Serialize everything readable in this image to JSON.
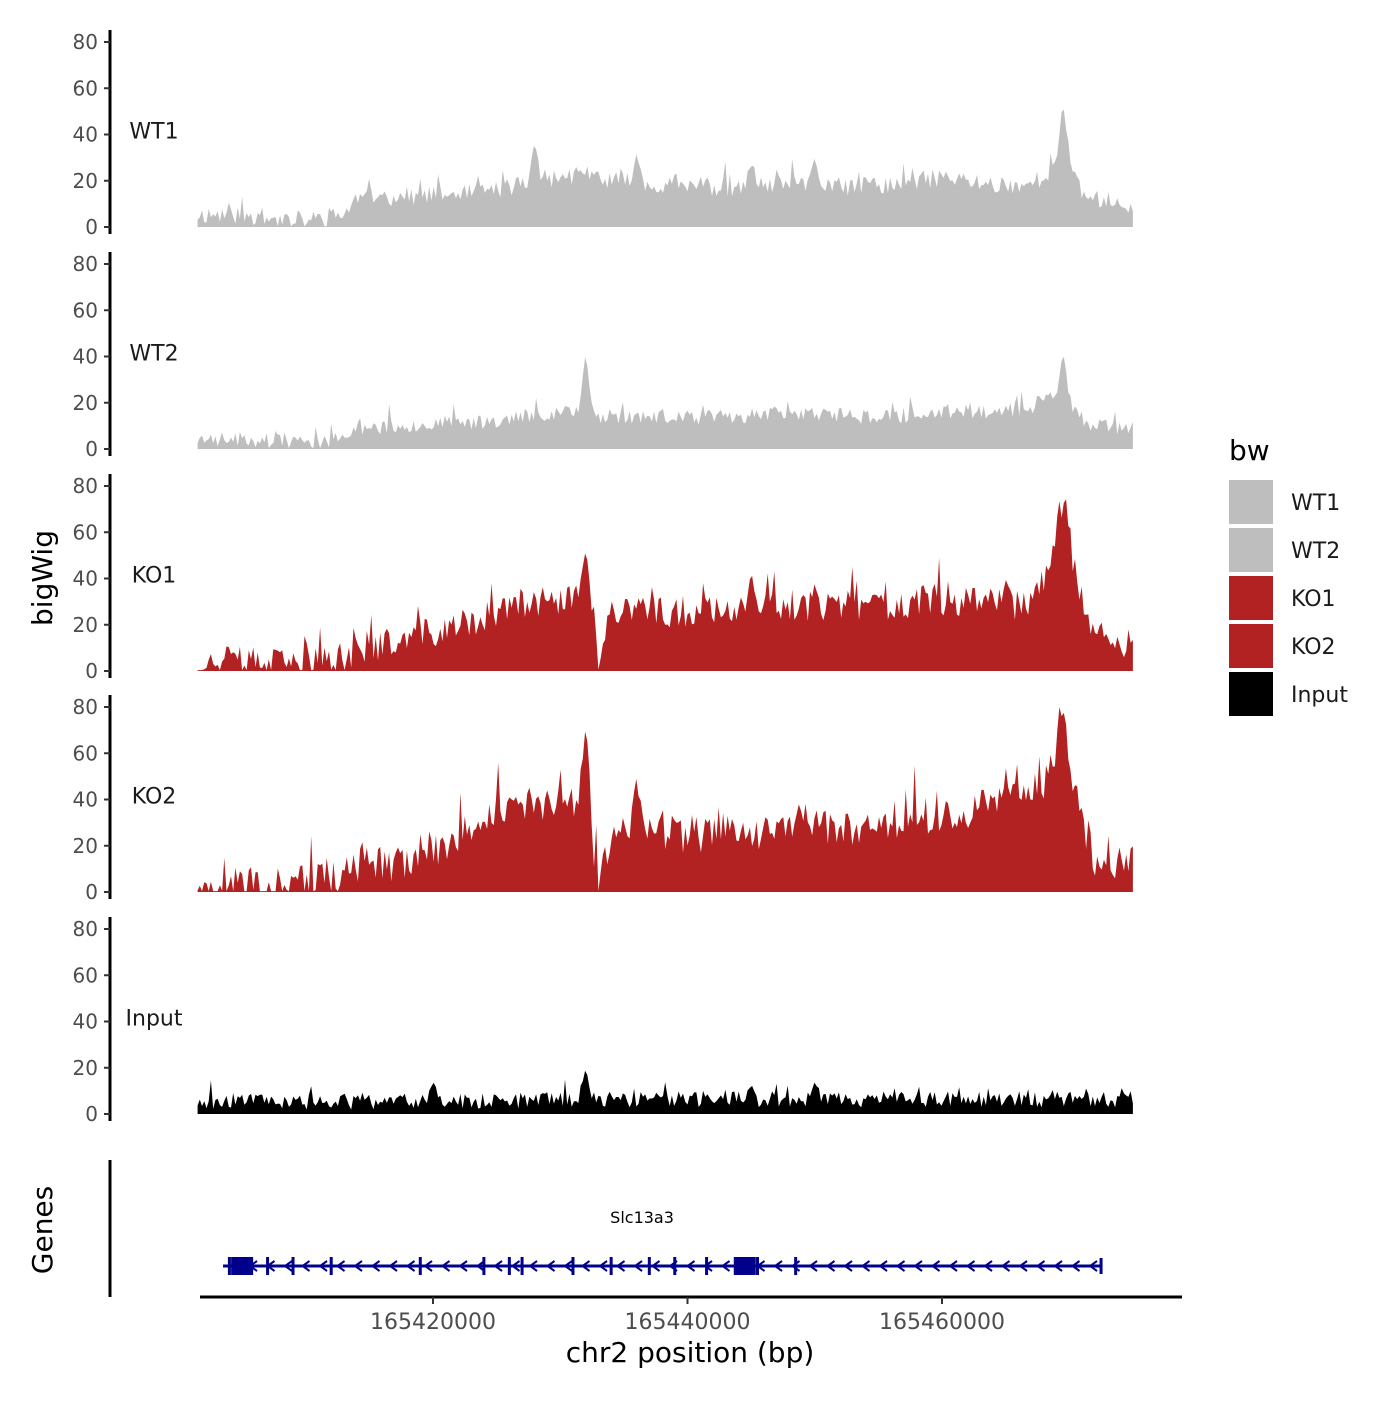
{
  "chart_data": {
    "type": "area",
    "title": "",
    "xlabel": "chr2 position (bp)",
    "ylabel": "bigWig",
    "genes_label": "Genes",
    "x_range": [
      165401500,
      165475000
    ],
    "x_ticks": [
      165420000,
      165440000,
      165460000
    ],
    "x_tick_labels": [
      "165420000",
      "165440000",
      "165460000"
    ],
    "ylim": [
      0,
      80
    ],
    "y_ticks": [
      0,
      20,
      40,
      60,
      80
    ],
    "y_tick_labels": [
      "0",
      "20",
      "40",
      "60",
      "80"
    ],
    "legend": {
      "title": "bw",
      "position": "right",
      "entries": [
        {
          "label": "WT1",
          "color": "#bebebe"
        },
        {
          "label": "WT2",
          "color": "#bebebe"
        },
        {
          "label": "KO1",
          "color": "#b22222"
        },
        {
          "label": "KO2",
          "color": "#b22222"
        },
        {
          "label": "Input",
          "color": "#000000"
        }
      ]
    },
    "series": [
      {
        "name": "WT1",
        "color": "#bebebe",
        "seed": 11,
        "noise": 6,
        "profile": [
          [
            165405000,
            5
          ],
          [
            165409000,
            2
          ],
          [
            165411000,
            3
          ],
          [
            165413000,
            5
          ],
          [
            165414000,
            12
          ],
          [
            165418000,
            13
          ],
          [
            165423000,
            14
          ],
          [
            165426000,
            17
          ],
          [
            165428000,
            20
          ],
          [
            165432000,
            22
          ],
          [
            165436000,
            18
          ],
          [
            165440000,
            18
          ],
          [
            165444000,
            16
          ],
          [
            165448000,
            18
          ],
          [
            165452000,
            17
          ],
          [
            165456000,
            18
          ],
          [
            165460000,
            21
          ],
          [
            165464000,
            18
          ],
          [
            165467000,
            18
          ],
          [
            165469000,
            26
          ],
          [
            165470000,
            30
          ],
          [
            165471000,
            14
          ],
          [
            165475000,
            8
          ]
        ],
        "peaks": [
          [
            165428000,
            37
          ],
          [
            165436000,
            32
          ],
          [
            165445000,
            28
          ],
          [
            165450000,
            30
          ],
          [
            165469500,
            54
          ]
        ]
      },
      {
        "name": "WT2",
        "color": "#bebebe",
        "seed": 23,
        "noise": 5,
        "profile": [
          [
            165405000,
            4
          ],
          [
            165409000,
            2
          ],
          [
            165411000,
            3
          ],
          [
            165413000,
            4
          ],
          [
            165414000,
            9
          ],
          [
            165418000,
            10
          ],
          [
            165423000,
            11
          ],
          [
            165426000,
            13
          ],
          [
            165430000,
            16
          ],
          [
            165432000,
            14
          ],
          [
            165436000,
            14
          ],
          [
            165440000,
            13
          ],
          [
            165444000,
            14
          ],
          [
            165448000,
            15
          ],
          [
            165452000,
            14
          ],
          [
            165456000,
            14
          ],
          [
            165460000,
            15
          ],
          [
            165464000,
            16
          ],
          [
            165467000,
            18
          ],
          [
            165469000,
            24
          ],
          [
            165470000,
            22
          ],
          [
            165471000,
            10
          ],
          [
            165475000,
            8
          ]
        ],
        "peaks": [
          [
            165432000,
            42
          ],
          [
            165469500,
            42
          ]
        ]
      },
      {
        "name": "KO1",
        "color": "#b22222",
        "seed": 37,
        "noise": 10,
        "profile": [
          [
            165405000,
            3
          ],
          [
            165409000,
            2
          ],
          [
            165411000,
            3
          ],
          [
            165413000,
            5
          ],
          [
            165414000,
            9
          ],
          [
            165418000,
            13
          ],
          [
            165421000,
            17
          ],
          [
            165424000,
            22
          ],
          [
            165426000,
            26
          ],
          [
            165430000,
            30
          ],
          [
            165432000,
            32
          ],
          [
            165433000,
            5
          ],
          [
            165434000,
            25
          ],
          [
            165440000,
            25
          ],
          [
            165444000,
            28
          ],
          [
            165448000,
            28
          ],
          [
            165452000,
            27
          ],
          [
            165456000,
            27
          ],
          [
            165460000,
            30
          ],
          [
            165464000,
            30
          ],
          [
            165467000,
            27
          ],
          [
            165468500,
            45
          ],
          [
            165469500,
            75
          ],
          [
            165470500,
            40
          ],
          [
            165472000,
            14
          ],
          [
            165475000,
            10
          ]
        ],
        "peaks": [
          [
            165432000,
            53
          ],
          [
            165445000,
            43
          ],
          [
            165450000,
            38
          ],
          [
            165465000,
            40
          ]
        ]
      },
      {
        "name": "KO2",
        "color": "#b22222",
        "seed": 49,
        "noise": 12,
        "profile": [
          [
            165405000,
            4
          ],
          [
            165409000,
            2
          ],
          [
            165411000,
            4
          ],
          [
            165413000,
            6
          ],
          [
            165414000,
            10
          ],
          [
            165418000,
            13
          ],
          [
            165421000,
            18
          ],
          [
            165424000,
            30
          ],
          [
            165426000,
            34
          ],
          [
            165430000,
            36
          ],
          [
            165432000,
            40
          ],
          [
            165433000,
            3
          ],
          [
            165434000,
            26
          ],
          [
            165440000,
            24
          ],
          [
            165444000,
            25
          ],
          [
            165448000,
            27
          ],
          [
            165452000,
            27
          ],
          [
            165456000,
            30
          ],
          [
            165460000,
            33
          ],
          [
            165464000,
            36
          ],
          [
            165466000,
            40
          ],
          [
            165468000,
            45
          ],
          [
            165469500,
            72
          ],
          [
            165470500,
            40
          ],
          [
            165472000,
            14
          ],
          [
            165475000,
            12
          ]
        ],
        "peaks": [
          [
            165432000,
            73
          ],
          [
            165436000,
            50
          ],
          [
            165465000,
            50
          ],
          [
            165469500,
            80
          ]
        ]
      },
      {
        "name": "Input",
        "color": "#000000",
        "seed": 61,
        "noise": 5,
        "profile": [
          [
            165405000,
            5
          ],
          [
            165413000,
            5
          ],
          [
            165423000,
            5
          ],
          [
            165432000,
            6
          ],
          [
            165440000,
            6
          ],
          [
            165450000,
            6
          ],
          [
            165460000,
            6
          ],
          [
            165470000,
            6
          ],
          [
            165475000,
            6
          ]
        ],
        "peaks": [
          [
            165432000,
            20
          ],
          [
            165420000,
            14
          ],
          [
            165445000,
            13
          ],
          [
            165450000,
            14
          ]
        ]
      }
    ],
    "gene": {
      "name": "Slc13a3",
      "strand": "-",
      "start": 165403500,
      "end": 165472500,
      "color": "#00008b",
      "exons": [
        165404000,
        165407000,
        165409000,
        165412000,
        165419000,
        165424000,
        165426000,
        165427000,
        165431000,
        165434000,
        165437000,
        165439000,
        165441500,
        165445500,
        165448500
      ],
      "big_exons": [
        165405000,
        165444500
      ]
    }
  }
}
